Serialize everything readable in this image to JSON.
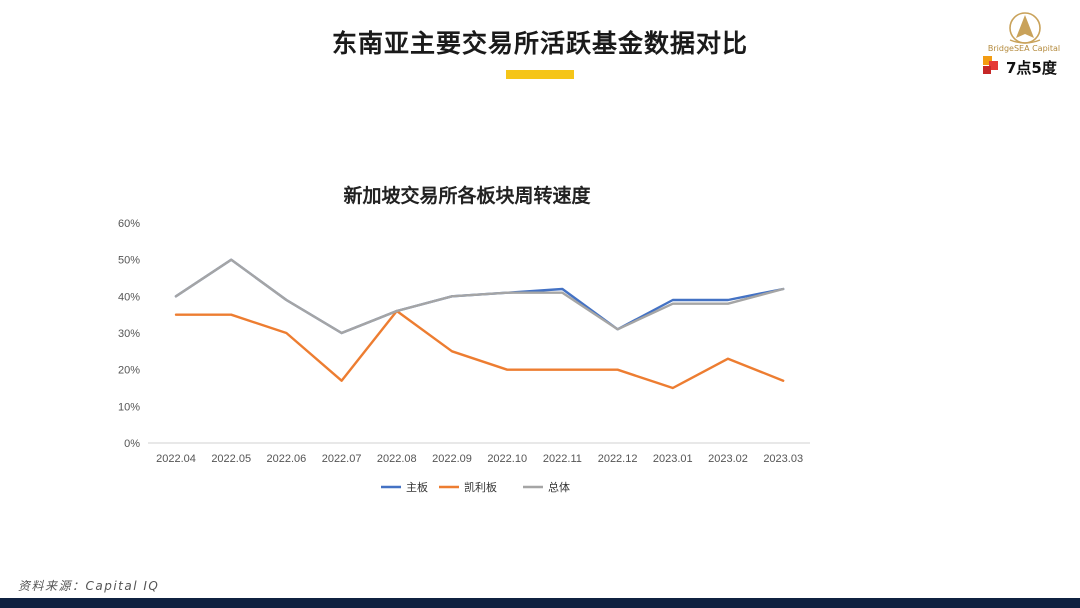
{
  "header": {
    "title": "东南亚主要交易所活跃基金数据对比",
    "accent_color": "#f5c518"
  },
  "brand": {
    "logo_icon": "sail-logo-icon",
    "caption": "BridgeSEA Capital",
    "mark_icon": "colored-squares-icon",
    "text": "7点5度"
  },
  "chart_data": {
    "type": "line",
    "title": "新加坡交易所各板块周转速度",
    "categories": [
      "2022.04",
      "2022.05",
      "2022.06",
      "2022.07",
      "2022.08",
      "2022.09",
      "2022.10",
      "2022.11",
      "2022.12",
      "2023.01",
      "2023.02",
      "2023.03"
    ],
    "series": [
      {
        "name": "主板",
        "color": "#4472c4",
        "values": [
          40,
          50,
          39,
          30,
          36,
          40,
          41,
          42,
          31,
          39,
          39,
          42
        ]
      },
      {
        "name": "凯利板",
        "color": "#ed7d31",
        "values": [
          35,
          35,
          30,
          17,
          36,
          25,
          20,
          20,
          20,
          15,
          23,
          17
        ]
      },
      {
        "name": "总体",
        "color": "#a5a5a5",
        "values": [
          40,
          50,
          39,
          30,
          36,
          40,
          41,
          41,
          31,
          38,
          38,
          42
        ]
      }
    ],
    "y_ticks": [
      "0%",
      "10%",
      "20%",
      "30%",
      "40%",
      "50%",
      "60%"
    ],
    "ylim": [
      0,
      60
    ],
    "grid": false,
    "legend_position": "bottom"
  },
  "footer": {
    "source": "资料来源：Capital IQ",
    "bar_color": "#0f2140"
  }
}
